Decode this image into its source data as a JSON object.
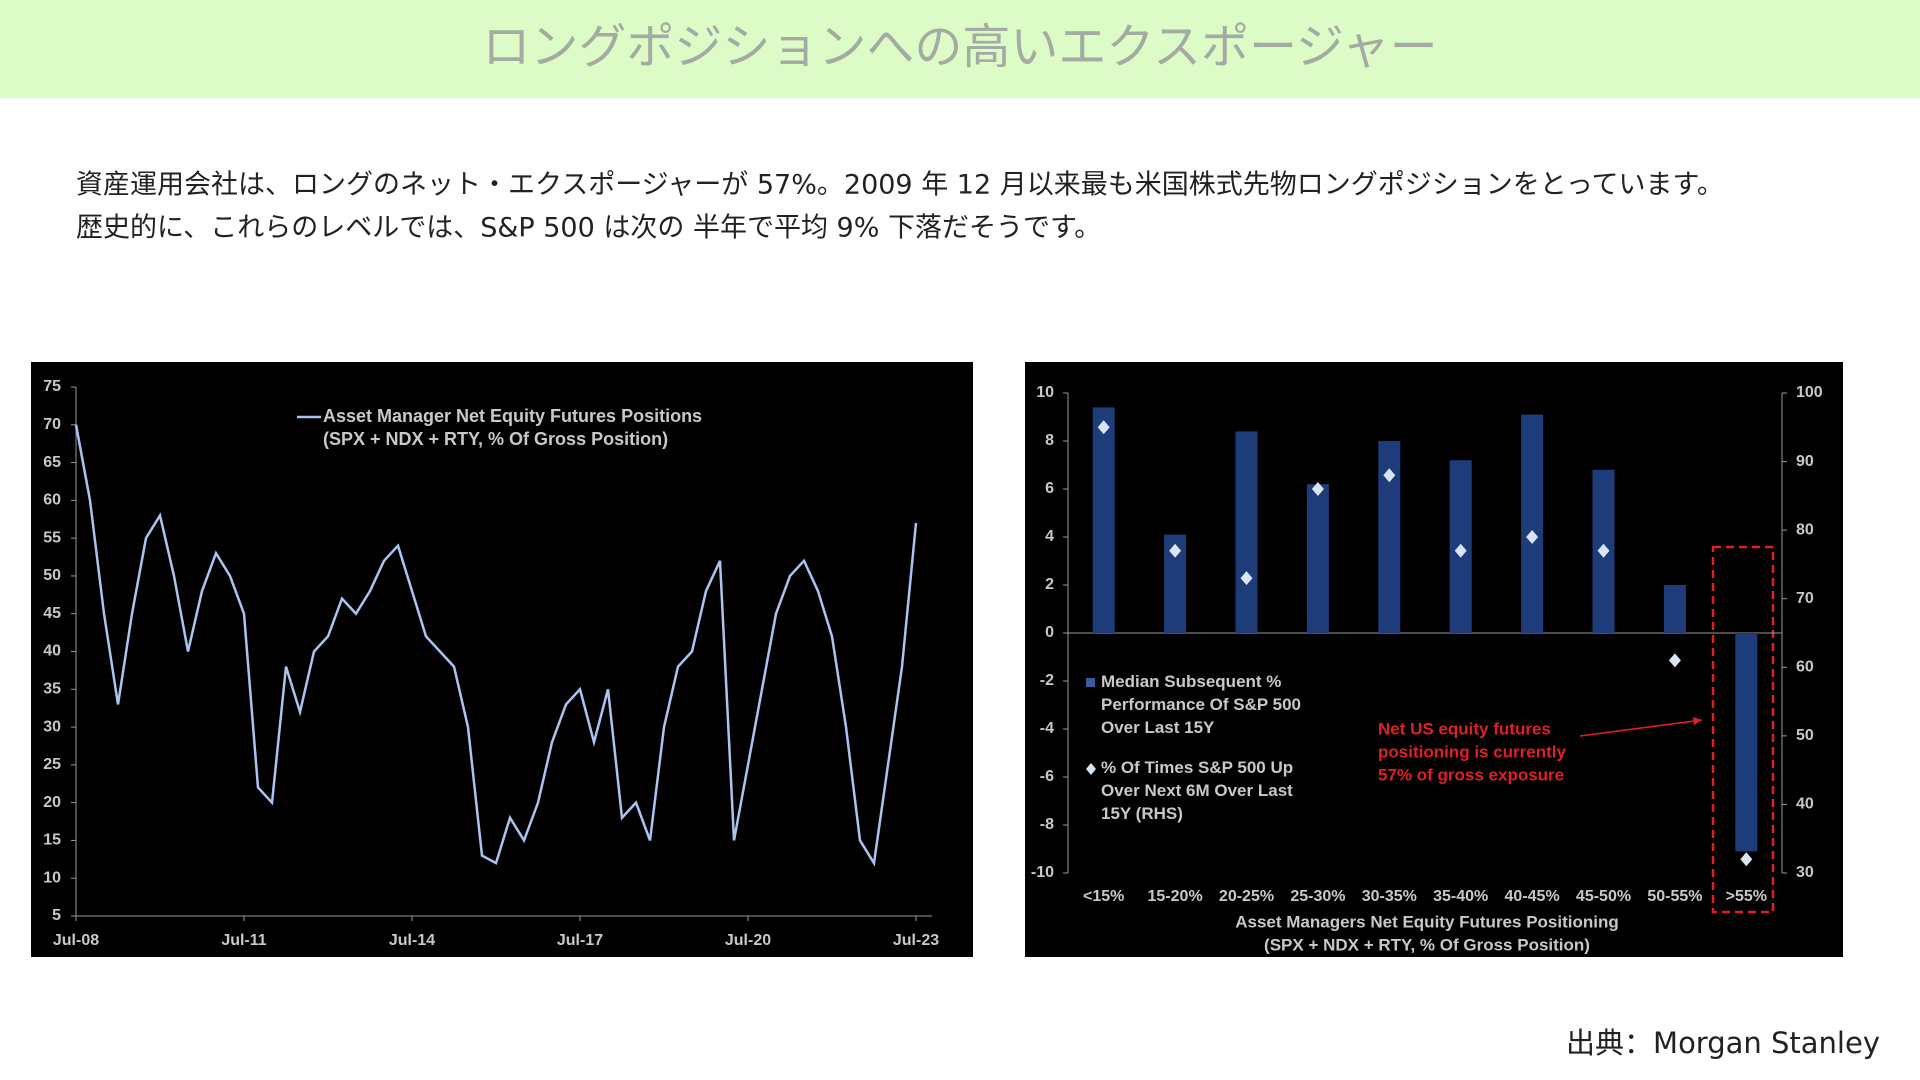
{
  "title": "ロングポジションへの高いエクスポージャー",
  "body": [
    "資産運用会社は、ロングのネット・エクスポージャーが 57%。2009 年 12 月以来最も米国株式先物ロングポジションをとっています。",
    "歴史的に、これらのレベルでは、S&P 500 は次の 半年で平均 9% 下落だそうです。"
  ],
  "source": "出典：Morgan Stanley",
  "chart_data": [
    {
      "type": "line",
      "x": [
        "Jul-08",
        "Oct-08",
        "Jan-09",
        "Apr-09",
        "Jul-09",
        "Oct-09",
        "Jan-10",
        "Apr-10",
        "Jul-10",
        "Oct-10",
        "Jan-11",
        "Apr-11",
        "Jul-11",
        "Oct-11",
        "Jan-12",
        "Apr-12",
        "Jul-12",
        "Oct-12",
        "Jan-13",
        "Apr-13",
        "Jul-13",
        "Oct-13",
        "Jan-14",
        "Apr-14",
        "Jul-14",
        "Oct-14",
        "Jan-15",
        "Apr-15",
        "Jul-15",
        "Oct-15",
        "Jan-16",
        "Apr-16",
        "Jul-16",
        "Oct-16",
        "Jan-17",
        "Apr-17",
        "Jul-17",
        "Oct-17",
        "Jan-18",
        "Apr-18",
        "Jul-18",
        "Oct-18",
        "Jan-19",
        "Apr-19",
        "Jul-19",
        "Oct-19",
        "Jan-20",
        "Apr-20",
        "Jul-20",
        "Oct-20",
        "Jan-21",
        "Apr-21",
        "Jul-21",
        "Oct-21",
        "Jan-22",
        "Apr-22",
        "Jul-22",
        "Oct-22",
        "Jan-23",
        "Apr-23",
        "Jul-23"
      ],
      "series": [
        {
          "name": "Asset Manager Net Equity Futures Positions",
          "color": "#a9c4f0",
          "values": [
            70,
            60,
            45,
            33,
            45,
            55,
            58,
            50,
            40,
            48,
            53,
            50,
            45,
            22,
            20,
            38,
            32,
            40,
            42,
            47,
            45,
            48,
            52,
            54,
            48,
            42,
            40,
            38,
            30,
            13,
            12,
            18,
            15,
            20,
            28,
            33,
            35,
            28,
            35,
            18,
            20,
            15,
            30,
            38,
            40,
            48,
            52,
            15,
            25,
            35,
            45,
            50,
            52,
            48,
            42,
            30,
            15,
            12,
            25,
            38,
            57
          ]
        }
      ],
      "legend_note": "(SPX + NDX + RTY, % Of Gross Position)",
      "xticks": [
        "Jul-08",
        "Jul-11",
        "Jul-14",
        "Jul-17",
        "Jul-20",
        "Jul-23"
      ],
      "ylim": [
        5,
        75
      ],
      "yticks": [
        5,
        10,
        15,
        20,
        25,
        30,
        35,
        40,
        45,
        50,
        55,
        60,
        65,
        70,
        75
      ]
    },
    {
      "type": "bar",
      "categories": [
        "<15%",
        "15-20%",
        "20-25%",
        "25-30%",
        "30-35%",
        "35-40%",
        "40-45%",
        "45-50%",
        "50-55%",
        ">55%"
      ],
      "series": [
        {
          "name": "Median Subsequent % Performance Of S&P 500 Over Last 15Y",
          "color": "#1f3c7a",
          "values": [
            9.4,
            4.1,
            8.4,
            6.2,
            8.0,
            7.2,
            9.1,
            6.8,
            2.0,
            -9.1
          ]
        },
        {
          "name": "% Of Times S&P 500 Up Over Next 6M Over Last 15Y (RHS)",
          "color": "#d8e4f7",
          "axis": "y2",
          "values": [
            95,
            77,
            73,
            86,
            88,
            77,
            79,
            77,
            61,
            32
          ]
        }
      ],
      "xlabel": [
        "Asset Managers Net Equity Futures Positioning",
        "(SPX + NDX + RTY, % Of Gross Position)"
      ],
      "annotation": [
        "Net US equity futures",
        "positioning is currently",
        "57% of gross exposure"
      ],
      "ylim": [
        -10,
        10
      ],
      "yticks": [
        -10,
        -8,
        -6,
        -4,
        -2,
        0,
        2,
        4,
        6,
        8,
        10
      ],
      "y2lim": [
        30,
        100
      ],
      "y2ticks": [
        30,
        40,
        50,
        60,
        70,
        80,
        90,
        100
      ]
    }
  ]
}
